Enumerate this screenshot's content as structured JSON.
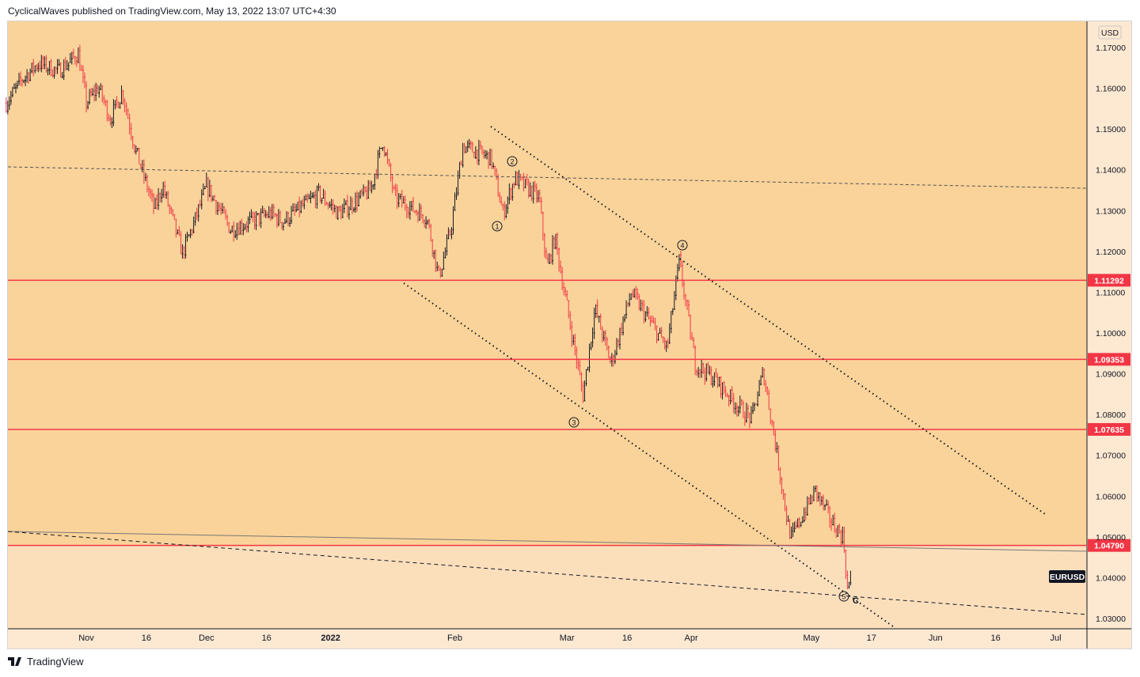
{
  "header": {
    "text": "CyclicalWaves published on TradingView.com, May 13, 2022 13:07 UTC+4:30"
  },
  "footer": {
    "logo": "TradingView"
  },
  "chart_data": {
    "type": "candlestick",
    "symbol": "EURUSD",
    "currency": "USD",
    "ylim": [
      1.025,
      1.176
    ],
    "price_ticks": [
      "1.17000",
      "1.16000",
      "1.15000",
      "1.14000",
      "1.13000",
      "1.12000",
      "1.11000",
      "1.10000",
      "1.09000",
      "1.08000",
      "1.07000",
      "1.06000",
      "1.05000",
      "1.04000",
      "1.03000"
    ],
    "time_ticks": [
      {
        "day": 0,
        "label": "Nov"
      },
      {
        "day": 15,
        "label": "16"
      },
      {
        "day": 30,
        "label": "Dec"
      },
      {
        "day": 45,
        "label": "16"
      },
      {
        "day": 61,
        "label": "2022"
      },
      {
        "day": 92,
        "label": "Feb"
      },
      {
        "day": 120,
        "label": "Mar"
      },
      {
        "day": 135,
        "label": "16"
      },
      {
        "day": 151,
        "label": "Apr"
      },
      {
        "day": 181,
        "label": "May"
      },
      {
        "day": 196,
        "label": "17"
      },
      {
        "day": 212,
        "label": "Jun"
      },
      {
        "day": 227,
        "label": "16"
      },
      {
        "day": 242,
        "label": "Jul"
      }
    ],
    "x_unit": "days since Nov 1 2021",
    "price_path": [
      [
        -20,
        1.1564
      ],
      [
        -16,
        1.1622
      ],
      [
        -12,
        1.1661
      ],
      [
        -7,
        1.1642
      ],
      [
        -2,
        1.1684
      ],
      [
        0,
        1.1564
      ],
      [
        3,
        1.1603
      ],
      [
        6,
        1.1525
      ],
      [
        9,
        1.1593
      ],
      [
        12,
        1.1458
      ],
      [
        17,
        1.1302
      ],
      [
        19,
        1.1361
      ],
      [
        24,
        1.1196
      ],
      [
        27,
        1.1273
      ],
      [
        30,
        1.1361
      ],
      [
        36,
        1.1254
      ],
      [
        46,
        1.1293
      ],
      [
        49,
        1.1273
      ],
      [
        58,
        1.1341
      ],
      [
        63,
        1.1293
      ],
      [
        71,
        1.1351
      ],
      [
        74,
        1.1471
      ],
      [
        77,
        1.1332
      ],
      [
        85,
        1.1283
      ],
      [
        88,
        1.1138
      ],
      [
        91,
        1.1254
      ],
      [
        94,
        1.1458
      ],
      [
        101,
        1.1429
      ],
      [
        104,
        1.1293
      ],
      [
        107,
        1.138
      ],
      [
        113,
        1.1332
      ],
      [
        115,
        1.1157
      ],
      [
        117,
        1.1235
      ],
      [
        119,
        1.1118
      ],
      [
        124,
        1.0847
      ],
      [
        127,
        1.106
      ],
      [
        131,
        1.0924
      ],
      [
        136,
        1.1099
      ],
      [
        145,
        1.0963
      ],
      [
        148,
        1.1176
      ],
      [
        152,
        1.0924
      ],
      [
        157,
        1.0886
      ],
      [
        162,
        1.0827
      ],
      [
        166,
        1.0789
      ],
      [
        169,
        1.0905
      ],
      [
        172,
        1.073
      ],
      [
        175,
        1.0537
      ],
      [
        176,
        1.0498
      ],
      [
        182,
        1.0614
      ],
      [
        186,
        1.0537
      ],
      [
        189,
        1.0498
      ],
      [
        190,
        1.0372
      ],
      [
        191,
        1.04
      ]
    ],
    "levels": [
      {
        "price": 1.11292,
        "label": "1.11292"
      },
      {
        "price": 1.09353,
        "label": "1.09353"
      },
      {
        "price": 1.07635,
        "label": "1.07635"
      },
      {
        "price": 1.0479,
        "label": "1.04790"
      }
    ],
    "wave_labels": [
      "1",
      "2",
      "3",
      "4",
      "5",
      "C"
    ],
    "colors": {
      "bg": "#fad39a",
      "bg_lower": "#fbdfbb",
      "level": "#f23645",
      "up": "#131722",
      "down": "#f23645"
    }
  }
}
